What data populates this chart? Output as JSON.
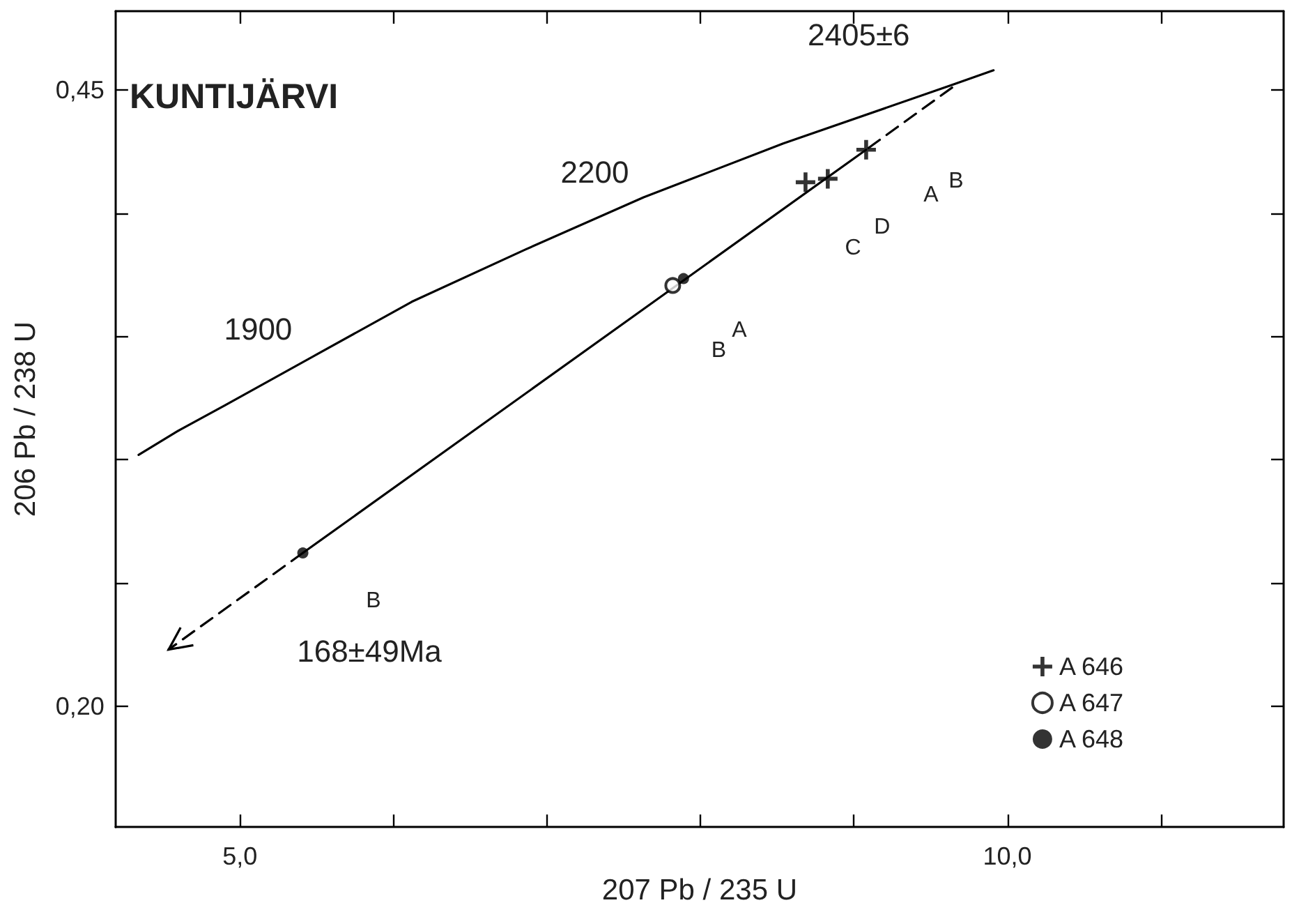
{
  "chart_data": {
    "type": "scatter",
    "title": "KUNTIJÄRVI",
    "xlabel": "207 Pb / 235 U",
    "ylabel": "206 Pb / 238 U",
    "xlim": [
      4.19,
      11.8
    ],
    "ylim": [
      0.151,
      0.482
    ],
    "xticks": [
      {
        "value": 5,
        "label": "5,0"
      },
      {
        "value": 6,
        "label": null
      },
      {
        "value": 7,
        "label": null
      },
      {
        "value": 8,
        "label": null
      },
      {
        "value": 9,
        "label": null
      },
      {
        "value": 10,
        "label": "10,0"
      },
      {
        "value": 11,
        "label": null
      }
    ],
    "yticks": [
      {
        "value": 0.2,
        "label": "0,20"
      },
      {
        "value": 0.25,
        "label": null
      },
      {
        "value": 0.3,
        "label": null
      },
      {
        "value": 0.35,
        "label": null
      },
      {
        "value": 0.4,
        "label": null
      },
      {
        "value": 0.45,
        "label": "0,45"
      }
    ],
    "grid": false,
    "legend": "bottom right",
    "series": [
      {
        "type": "line",
        "color": "#000000",
        "marker": "none",
        "line_style": "solid",
        "x": [
          4.34,
          4.61,
          4.9,
          5.5,
          6.12,
          6.86,
          7.63,
          8.54,
          9.64,
          9.91
        ],
        "values": [
          0.302,
          0.3122,
          0.322,
          0.3427,
          0.3641,
          0.3853,
          0.4065,
          0.4283,
          0.4521,
          0.458
        ]
      },
      {
        "type": "line",
        "color": "#000000",
        "marker": "none",
        "line_style": "solid",
        "x": [
          9.08,
          5.41
        ],
        "values": [
          0.4258,
          0.2622
        ]
      },
      {
        "type": "line",
        "color": "#000000",
        "marker": "none",
        "line_style": "dashed",
        "x": [
          9.64,
          9.08,
          7.0,
          5.41,
          4.535
        ],
        "values": [
          0.451,
          0.4258,
          null,
          0.2622,
          0.223
        ]
      },
      {
        "name": "A 646",
        "color": "#000000",
        "marker": "cross",
        "x": [
          8.685,
          8.83,
          9.08
        ],
        "values": [
          0.4126,
          0.414,
          0.4258
        ]
      },
      {
        "name": "A 647",
        "color": "#000000",
        "marker": "circle-open",
        "x": [
          7.82
        ],
        "values": [
          0.3707
        ]
      },
      {
        "name": "A 648",
        "color": "#000000",
        "marker": "circle",
        "x": [
          7.89,
          5.41
        ],
        "values": [
          0.3735,
          0.2622
        ]
      }
    ],
    "annotations": [
      {
        "text": "1900",
        "x": 5.5,
        "y": 0.3427
      },
      {
        "text": "2200",
        "x": 7.63,
        "y": 0.4065
      },
      {
        "text": "2405±6",
        "x": 9.64,
        "y": 0.4521
      },
      "168±49Ma",
      "A",
      "B",
      "C",
      {
        "text": "D",
        "x": 8.83,
        "y": 0.414
      },
      {
        "text": "B",
        "x": 7.82,
        "y": 0.3707
      },
      {
        "text": "A",
        "x": 7.89,
        "y": 0.3735
      },
      "B"
    ]
  }
}
